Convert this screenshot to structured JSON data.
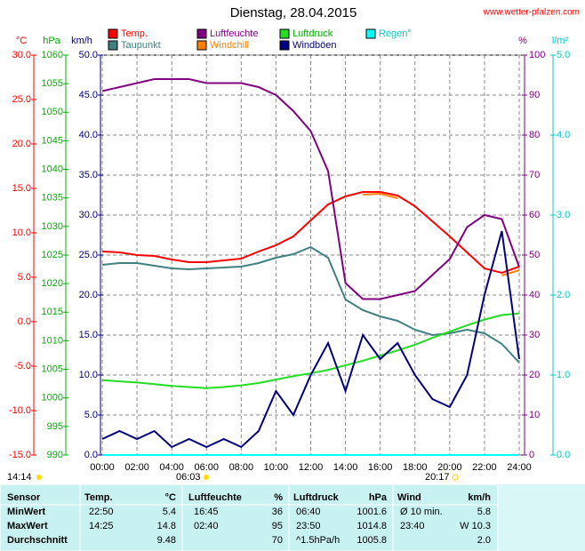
{
  "chart_data": {
    "type": "line",
    "title": "Dienstag, 28.04.2015",
    "source": "www.wetter-pfalzen.com",
    "x": [
      0,
      1,
      2,
      3,
      4,
      5,
      6,
      7,
      8,
      9,
      10,
      11,
      12,
      13,
      14,
      15,
      16,
      17,
      18,
      19,
      20,
      21,
      22,
      23,
      24
    ],
    "xlim": [
      0,
      24
    ],
    "xticks": [
      {
        "value": 0,
        "label": "00:00"
      },
      {
        "value": 2,
        "label": "02:00"
      },
      {
        "value": 4,
        "label": "04:00"
      },
      {
        "value": 6,
        "label": "06:00"
      },
      {
        "value": 8,
        "label": "08:00"
      },
      {
        "value": 10,
        "label": "10:00"
      },
      {
        "value": 12,
        "label": "12:00"
      },
      {
        "value": 14,
        "label": "14:00"
      },
      {
        "value": 16,
        "label": "16:00"
      },
      {
        "value": 18,
        "label": "18:00"
      },
      {
        "value": 20,
        "label": "20:00"
      },
      {
        "value": 22,
        "label": "22:00"
      },
      {
        "value": 24,
        "label": "24:00"
      }
    ],
    "grid": true,
    "axes": [
      {
        "label": "°C",
        "color": "#ff0000",
        "lim": [
          -15,
          30
        ],
        "ticks": [
          {
            "value": -15,
            "label": "-15.0"
          },
          {
            "value": -10,
            "label": "-10.0"
          },
          {
            "value": -5,
            "label": "-5.0"
          },
          {
            "value": 0,
            "label": "0.0"
          },
          {
            "value": 5,
            "label": "5.0"
          },
          {
            "value": 10,
            "label": "10.0"
          },
          {
            "value": 15,
            "label": "15.0"
          },
          {
            "value": 20,
            "label": "20.0"
          },
          {
            "value": 25,
            "label": "25.0"
          },
          {
            "value": 30,
            "label": "30.0"
          }
        ]
      },
      {
        "label": "hPa",
        "color": "#00b000",
        "lim": [
          990,
          1060
        ],
        "ticks": [
          990,
          995,
          1000,
          1005,
          1010,
          1015,
          1020,
          1025,
          1030,
          1035,
          1040,
          1045,
          1050,
          1055,
          1060
        ]
      },
      {
        "label": "km/h",
        "color": "#000080",
        "lim": [
          0,
          50
        ],
        "ticks": [
          {
            "value": 0,
            "label": "0.0"
          },
          {
            "value": 5,
            "label": "5.0"
          },
          {
            "value": 10,
            "label": "10.0"
          },
          {
            "value": 15,
            "label": "15.0"
          },
          {
            "value": 20,
            "label": "20.0"
          },
          {
            "value": 25,
            "label": "25.0"
          },
          {
            "value": 30,
            "label": "30.0"
          },
          {
            "value": 35,
            "label": "35.0"
          },
          {
            "value": 40,
            "label": "40.0"
          },
          {
            "value": 45,
            "label": "45.0"
          },
          {
            "value": 50,
            "label": "50.0"
          }
        ]
      },
      {
        "label": "%",
        "color": "#800080",
        "lim": [
          0,
          100
        ],
        "ticks": [
          0,
          10,
          20,
          30,
          40,
          50,
          60,
          70,
          80,
          90,
          100
        ]
      },
      {
        "label": "l/m²",
        "color": "#00cccc",
        "lim": [
          0,
          5
        ],
        "ticks": [
          {
            "value": 0,
            "label": "0.0"
          },
          {
            "value": 1,
            "label": "1.0"
          },
          {
            "value": 2,
            "label": "2.0"
          },
          {
            "value": 3,
            "label": "3.0"
          },
          {
            "value": 4,
            "label": "4.0"
          },
          {
            "value": 5,
            "label": "5.0"
          }
        ]
      }
    ],
    "series": [
      {
        "name": "Temp.",
        "color": "#ff0000",
        "axis": 0,
        "values": [
          7.9,
          7.8,
          7.5,
          7.4,
          7.0,
          6.7,
          6.7,
          6.9,
          7.1,
          7.9,
          8.6,
          9.6,
          11.4,
          13.2,
          14.1,
          14.6,
          14.6,
          14.2,
          13.0,
          11.3,
          9.6,
          7.8,
          6.0,
          5.5,
          6.2
        ]
      },
      {
        "name": "Taupunkt",
        "color": "#408080",
        "axis": 0,
        "values": [
          6.4,
          6.6,
          6.6,
          6.3,
          6.0,
          5.9,
          6.0,
          6.1,
          6.2,
          6.6,
          7.2,
          7.6,
          8.4,
          7.2,
          2.5,
          1.3,
          0.6,
          0.1,
          -0.9,
          -1.5,
          -1.3,
          -0.9,
          -1.3,
          -2.5,
          -4.6
        ]
      },
      {
        "name": "Luftfeuchte",
        "color": "#800080",
        "axis": 3,
        "values": [
          91,
          92,
          93,
          94,
          94,
          94,
          93,
          93,
          93,
          92,
          90,
          86,
          81,
          71,
          43,
          39,
          39,
          40,
          41,
          45,
          49,
          57,
          60,
          59,
          47
        ]
      },
      {
        "name": "Windchill",
        "color": "#ff8000",
        "axis": 0,
        "values": [
          null,
          null,
          null,
          null,
          null,
          null,
          null,
          null,
          null,
          null,
          null,
          null,
          null,
          null,
          null,
          14.3,
          14.4,
          13.9,
          null,
          null,
          null,
          null,
          null,
          5.2,
          5.8
        ]
      },
      {
        "name": "Luftdruck",
        "color": "#22dd22",
        "axis": 1,
        "values": [
          1003.1,
          1002.9,
          1002.7,
          1002.4,
          1002.1,
          1001.9,
          1001.7,
          1001.9,
          1002.2,
          1002.6,
          1003.2,
          1003.8,
          1004.3,
          1004.9,
          1005.7,
          1006.5,
          1007.4,
          1008.3,
          1009.3,
          1010.5,
          1011.6,
          1012.7,
          1013.7,
          1014.5,
          1014.8
        ]
      },
      {
        "name": "Windböen",
        "color": "#000080",
        "axis": 2,
        "values": [
          2,
          3,
          2,
          3,
          1,
          2,
          1,
          2,
          1,
          3,
          8,
          5,
          10,
          14,
          8,
          15,
          12,
          14,
          10,
          7,
          6,
          10,
          20,
          28,
          12
        ]
      },
      {
        "name": "Regen°",
        "color": "#00ffff",
        "axis": 4,
        "values": [
          0,
          0,
          0,
          0,
          0,
          0,
          0,
          0,
          0,
          0,
          0,
          0,
          0,
          0,
          0,
          0,
          0,
          0,
          0,
          0,
          0,
          0,
          0,
          0,
          0
        ]
      }
    ],
    "annotations": {
      "updated": "14:14",
      "sunrise": "06:03",
      "sunset": "20:17"
    }
  },
  "table": {
    "header": [
      "Sensor",
      "Temp.",
      "°C",
      "Luftfeuchte",
      "%",
      "Luftdruck",
      "hPa",
      "Wind",
      "km/h"
    ],
    "rows": [
      [
        "MinWert",
        "22:50",
        "5.4",
        "16:45",
        "36",
        "06:40",
        "1001.6",
        "Ø 10 min.",
        "5.8"
      ],
      [
        "MaxWert",
        "14:25",
        "14.8",
        "02:40",
        "95",
        "23:50",
        "1014.8",
        "23:40",
        "W 10.3"
      ],
      [
        "Durchschnitt",
        null,
        "9.48",
        null,
        "70",
        "^1.5hPa/h",
        "1005.8",
        null,
        "2.0"
      ]
    ]
  }
}
